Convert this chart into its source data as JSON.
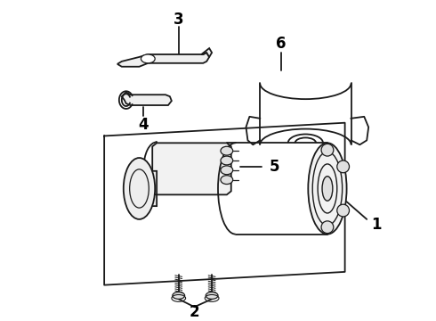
{
  "background_color": "#ffffff",
  "line_color": "#1a1a1a",
  "label_color": "#000000",
  "figsize": [
    4.9,
    3.6
  ],
  "dpi": 100,
  "label_fontsize": 12,
  "label_fontweight": "bold"
}
